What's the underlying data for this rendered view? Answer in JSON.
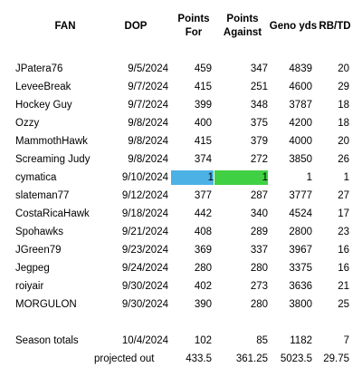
{
  "header": {
    "fan": "FAN",
    "dop": "DOP",
    "points_for_1": "Points",
    "points_for_2": "For",
    "points_against_1": "Points",
    "points_against_2": "Against",
    "geno_yds": "Geno yds",
    "rb_td": "RB/TD"
  },
  "rows": [
    {
      "fan": "JPatera76",
      "dop": "9/5/2024",
      "pf": "459",
      "pa": "347",
      "geno": "4839",
      "rb": "20"
    },
    {
      "fan": "LeveeBreak",
      "dop": "9/7/2024",
      "pf": "415",
      "pa": "251",
      "geno": "4600",
      "rb": "29"
    },
    {
      "fan": "Hockey Guy",
      "dop": "9/7/2024",
      "pf": "399",
      "pa": "348",
      "geno": "3787",
      "rb": "18"
    },
    {
      "fan": "Ozzy",
      "dop": "9/8/2024",
      "pf": "400",
      "pa": "375",
      "geno": "4200",
      "rb": "18"
    },
    {
      "fan": "MammothHawk",
      "dop": "9/8/2024",
      "pf": "415",
      "pa": "379",
      "geno": "4000",
      "rb": "20"
    },
    {
      "fan": "Screaming Judy",
      "dop": "9/8/2024",
      "pf": "374",
      "pa": "272",
      "geno": "3850",
      "rb": "26"
    },
    {
      "fan": "cymatica",
      "dop": "9/10/2024",
      "pf": "1",
      "pa": "1",
      "geno": "1",
      "rb": "1"
    },
    {
      "fan": "slateman77",
      "dop": "9/12/2024",
      "pf": "377",
      "pa": "287",
      "geno": "3777",
      "rb": "27"
    },
    {
      "fan": "CostaRicaHawk",
      "dop": "9/18/2024",
      "pf": "442",
      "pa": "340",
      "geno": "4524",
      "rb": "17"
    },
    {
      "fan": "Spohawks",
      "dop": "9/21/2024",
      "pf": "408",
      "pa": "289",
      "geno": "2800",
      "rb": "23"
    },
    {
      "fan": "JGreen79",
      "dop": "9/23/2024",
      "pf": "369",
      "pa": "337",
      "geno": "3967",
      "rb": "16"
    },
    {
      "fan": "Jegpeg",
      "dop": "9/24/2024",
      "pf": "280",
      "pa": "280",
      "geno": "3375",
      "rb": "16"
    },
    {
      "fan": "roiyair",
      "dop": "9/30/2024",
      "pf": "402",
      "pa": "273",
      "geno": "3636",
      "rb": "21"
    },
    {
      "fan": "MORGULON",
      "dop": "9/30/2024",
      "pf": "390",
      "pa": "280",
      "geno": "3800",
      "rb": "25"
    }
  ],
  "season_totals": {
    "label": "Season totals",
    "dop": "10/4/2024",
    "pf": "102",
    "pa": "85",
    "geno": "1182",
    "rb": "7"
  },
  "projected": {
    "label": "projected out",
    "pf": "433.5",
    "pa": "361.25",
    "geno": "5023.5",
    "rb": "29.75"
  },
  "colors": {
    "highlight_points_for": "#4cb1e5",
    "highlight_points_against": "#3fd043"
  }
}
